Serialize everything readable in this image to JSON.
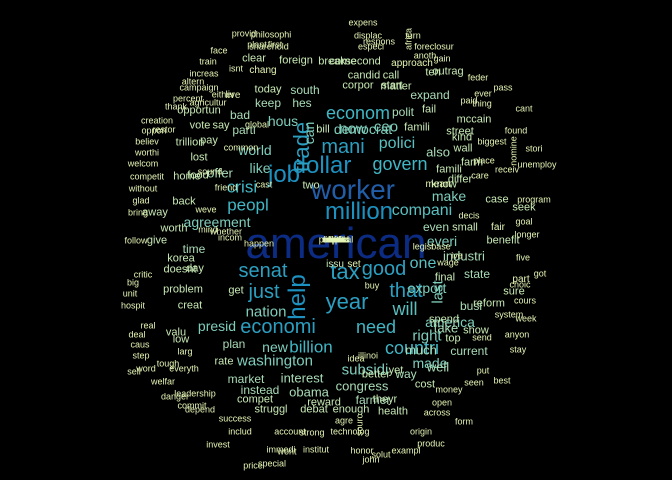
{
  "word_cloud": {
    "words": [
      "american",
      "worker",
      "job",
      "dollar",
      "million",
      "trade",
      "help",
      "tax",
      "year",
      "senat",
      "good",
      "that",
      "just",
      "mani",
      "econom",
      "govern",
      "crisi",
      "peopl",
      "economi",
      "need",
      "countri",
      "will",
      "billion",
      "compani",
      "polici",
      "now",
      "ceo",
      "make",
      "one",
      "nation",
      "right",
      "last",
      "can",
      "like",
      "world",
      "everi",
      "export",
      "washington",
      "subsidi",
      "hous",
      "democrat",
      "presid",
      "agreement",
      "plan",
      "interest",
      "obama",
      "congress",
      "farmer",
      "made",
      "america",
      "much",
      "also",
      "take",
      "busi",
      "state",
      "industri",
      "time",
      "offer",
      "new",
      "keep",
      "hes",
      "parti",
      "bad",
      "say",
      "problem",
      "day",
      "korea",
      "get",
      "market",
      "rate",
      "current",
      "well",
      "way",
      "cost",
      "enough",
      "health",
      "reward",
      "debat",
      "yet",
      "theyr",
      "instead",
      "struggl",
      "compet",
      "show",
      "reform",
      "part",
      "sure",
      "benefit",
      "fair",
      "case",
      "differ",
      "famili",
      "know",
      "polit",
      "kind",
      "corpor",
      "start",
      "expand",
      "south",
      "today",
      "bill",
      "two",
      "famili",
      "wall",
      "farm",
      "top",
      "fail",
      "mccain",
      "street",
      "seek",
      "spend",
      "final",
      "small",
      "even",
      "issu",
      "set",
      "buy",
      "mean",
      "doesnt",
      "creat",
      "low",
      "valu",
      "back",
      "lost",
      "home",
      "food",
      "worth",
      "give",
      "away",
      "pay",
      "trillion",
      "vote",
      "opportun",
      "better",
      "candid",
      "second",
      "foreign",
      "break",
      "come",
      "call",
      "matter",
      "ten",
      "outrag",
      "gain",
      "approach",
      "foreclosur",
      "respons",
      "especi",
      "displac",
      "expens",
      "turn",
      "africa",
      "anoth",
      "philosophi",
      "provid",
      "sharehold",
      "plant",
      "first",
      "clear",
      "chang",
      "isnt",
      "train",
      "face",
      "increas",
      "campaign",
      "percent",
      "altern",
      "agricultur",
      "thank",
      "either",
      "live",
      "believ",
      "worthi",
      "oppon",
      "creation",
      "restor",
      "welcom",
      "competit",
      "without",
      "glad",
      "follow",
      "bring",
      "big",
      "unit",
      "critic",
      "hospit",
      "real",
      "deal",
      "caus",
      "step",
      "sell",
      "word",
      "welfar",
      "tough",
      "larg",
      "everyth",
      "leadership",
      "danger",
      "depend",
      "commit",
      "success",
      "invest",
      "includ",
      "immedi",
      "special",
      "price",
      "account",
      "wont",
      "strong",
      "institut",
      "agre",
      "technolog",
      "sourc",
      "honor",
      "john",
      "solut",
      "exampl",
      "produc",
      "origin",
      "across",
      "form",
      "money",
      "open",
      "put",
      "seen",
      "best",
      "send",
      "anyon",
      "stay",
      "week",
      "cours",
      "got",
      "five",
      "longer",
      "goal",
      "program",
      "unemploy",
      "stori",
      "nomine",
      "cant",
      "found",
      "pass",
      "receiv",
      "biggest",
      "thing",
      "ever",
      "feder",
      "paid",
      "place",
      "care",
      "decis",
      "base",
      "wage",
      "illinoi",
      "idea",
      "mind",
      "sound",
      "whether",
      "friend",
      "incom",
      "cast",
      "happen",
      "global",
      "common",
      "system",
      "weve",
      "legisl",
      "choic",
      "ive",
      "ask",
      "move",
      "financi",
      "execut",
      "sens",
      "elect",
      "vet",
      "veto",
      "citi",
      "chanc",
      "fiftii",
      "serv",
      "expect",
      "proposal",
      "wait",
      "surpris",
      "less",
      "wont"
    ]
  }
}
